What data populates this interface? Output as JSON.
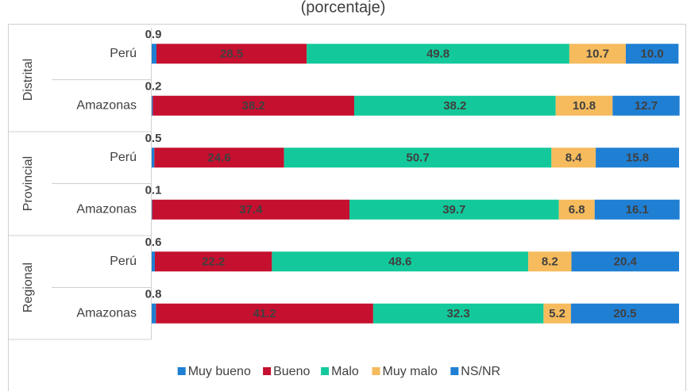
{
  "chart_data": {
    "type": "stacked_bar_horizontal",
    "title": "(porcentaje)",
    "groups": [
      {
        "name": "Distrital",
        "rows": [
          0,
          1
        ]
      },
      {
        "name": "Provincial",
        "rows": [
          2,
          3
        ]
      },
      {
        "name": "Regional",
        "rows": [
          4,
          5
        ]
      }
    ],
    "categories": [
      "Perú",
      "Amazonas",
      "Perú",
      "Amazonas",
      "Perú",
      "Amazonas"
    ],
    "xlim": [
      0,
      100
    ],
    "series": [
      {
        "name": "Muy bueno",
        "color": "#1f7fd3",
        "values": [
          0.9,
          0.2,
          0.5,
          0.1,
          0.6,
          0.8
        ],
        "value_labels": [
          "0.9",
          "0.2",
          "0.5",
          "0.1",
          "0.6",
          "0.8"
        ]
      },
      {
        "name": "Bueno",
        "color": "#c5102f",
        "values": [
          28.5,
          38.2,
          24.6,
          37.4,
          22.2,
          41.2
        ],
        "value_labels": [
          "28.5",
          "38.2",
          "24.6",
          "37.4",
          "22.2",
          "41.2"
        ]
      },
      {
        "name": "Malo",
        "color": "#13c99b",
        "values": [
          49.8,
          38.2,
          50.7,
          39.7,
          48.6,
          32.3
        ],
        "value_labels": [
          "49.8",
          "38.2",
          "50.7",
          "39.7",
          "48.6",
          "32.3"
        ]
      },
      {
        "name": "Muy malo",
        "color": "#f6bb5d",
        "values": [
          10.7,
          10.8,
          8.4,
          6.8,
          8.2,
          5.2
        ],
        "value_labels": [
          "10.7",
          "10.8",
          "8.4",
          "6.8",
          "8.2",
          "5.2"
        ]
      },
      {
        "name": "NS/NR",
        "color": "#1f7fd3",
        "values": [
          10.0,
          12.7,
          15.8,
          16.1,
          20.4,
          20.5
        ],
        "value_labels": [
          "10.0",
          "12.7",
          "15.8",
          "16.1",
          "20.4",
          "20.5"
        ]
      }
    ],
    "legend": "bottom"
  }
}
